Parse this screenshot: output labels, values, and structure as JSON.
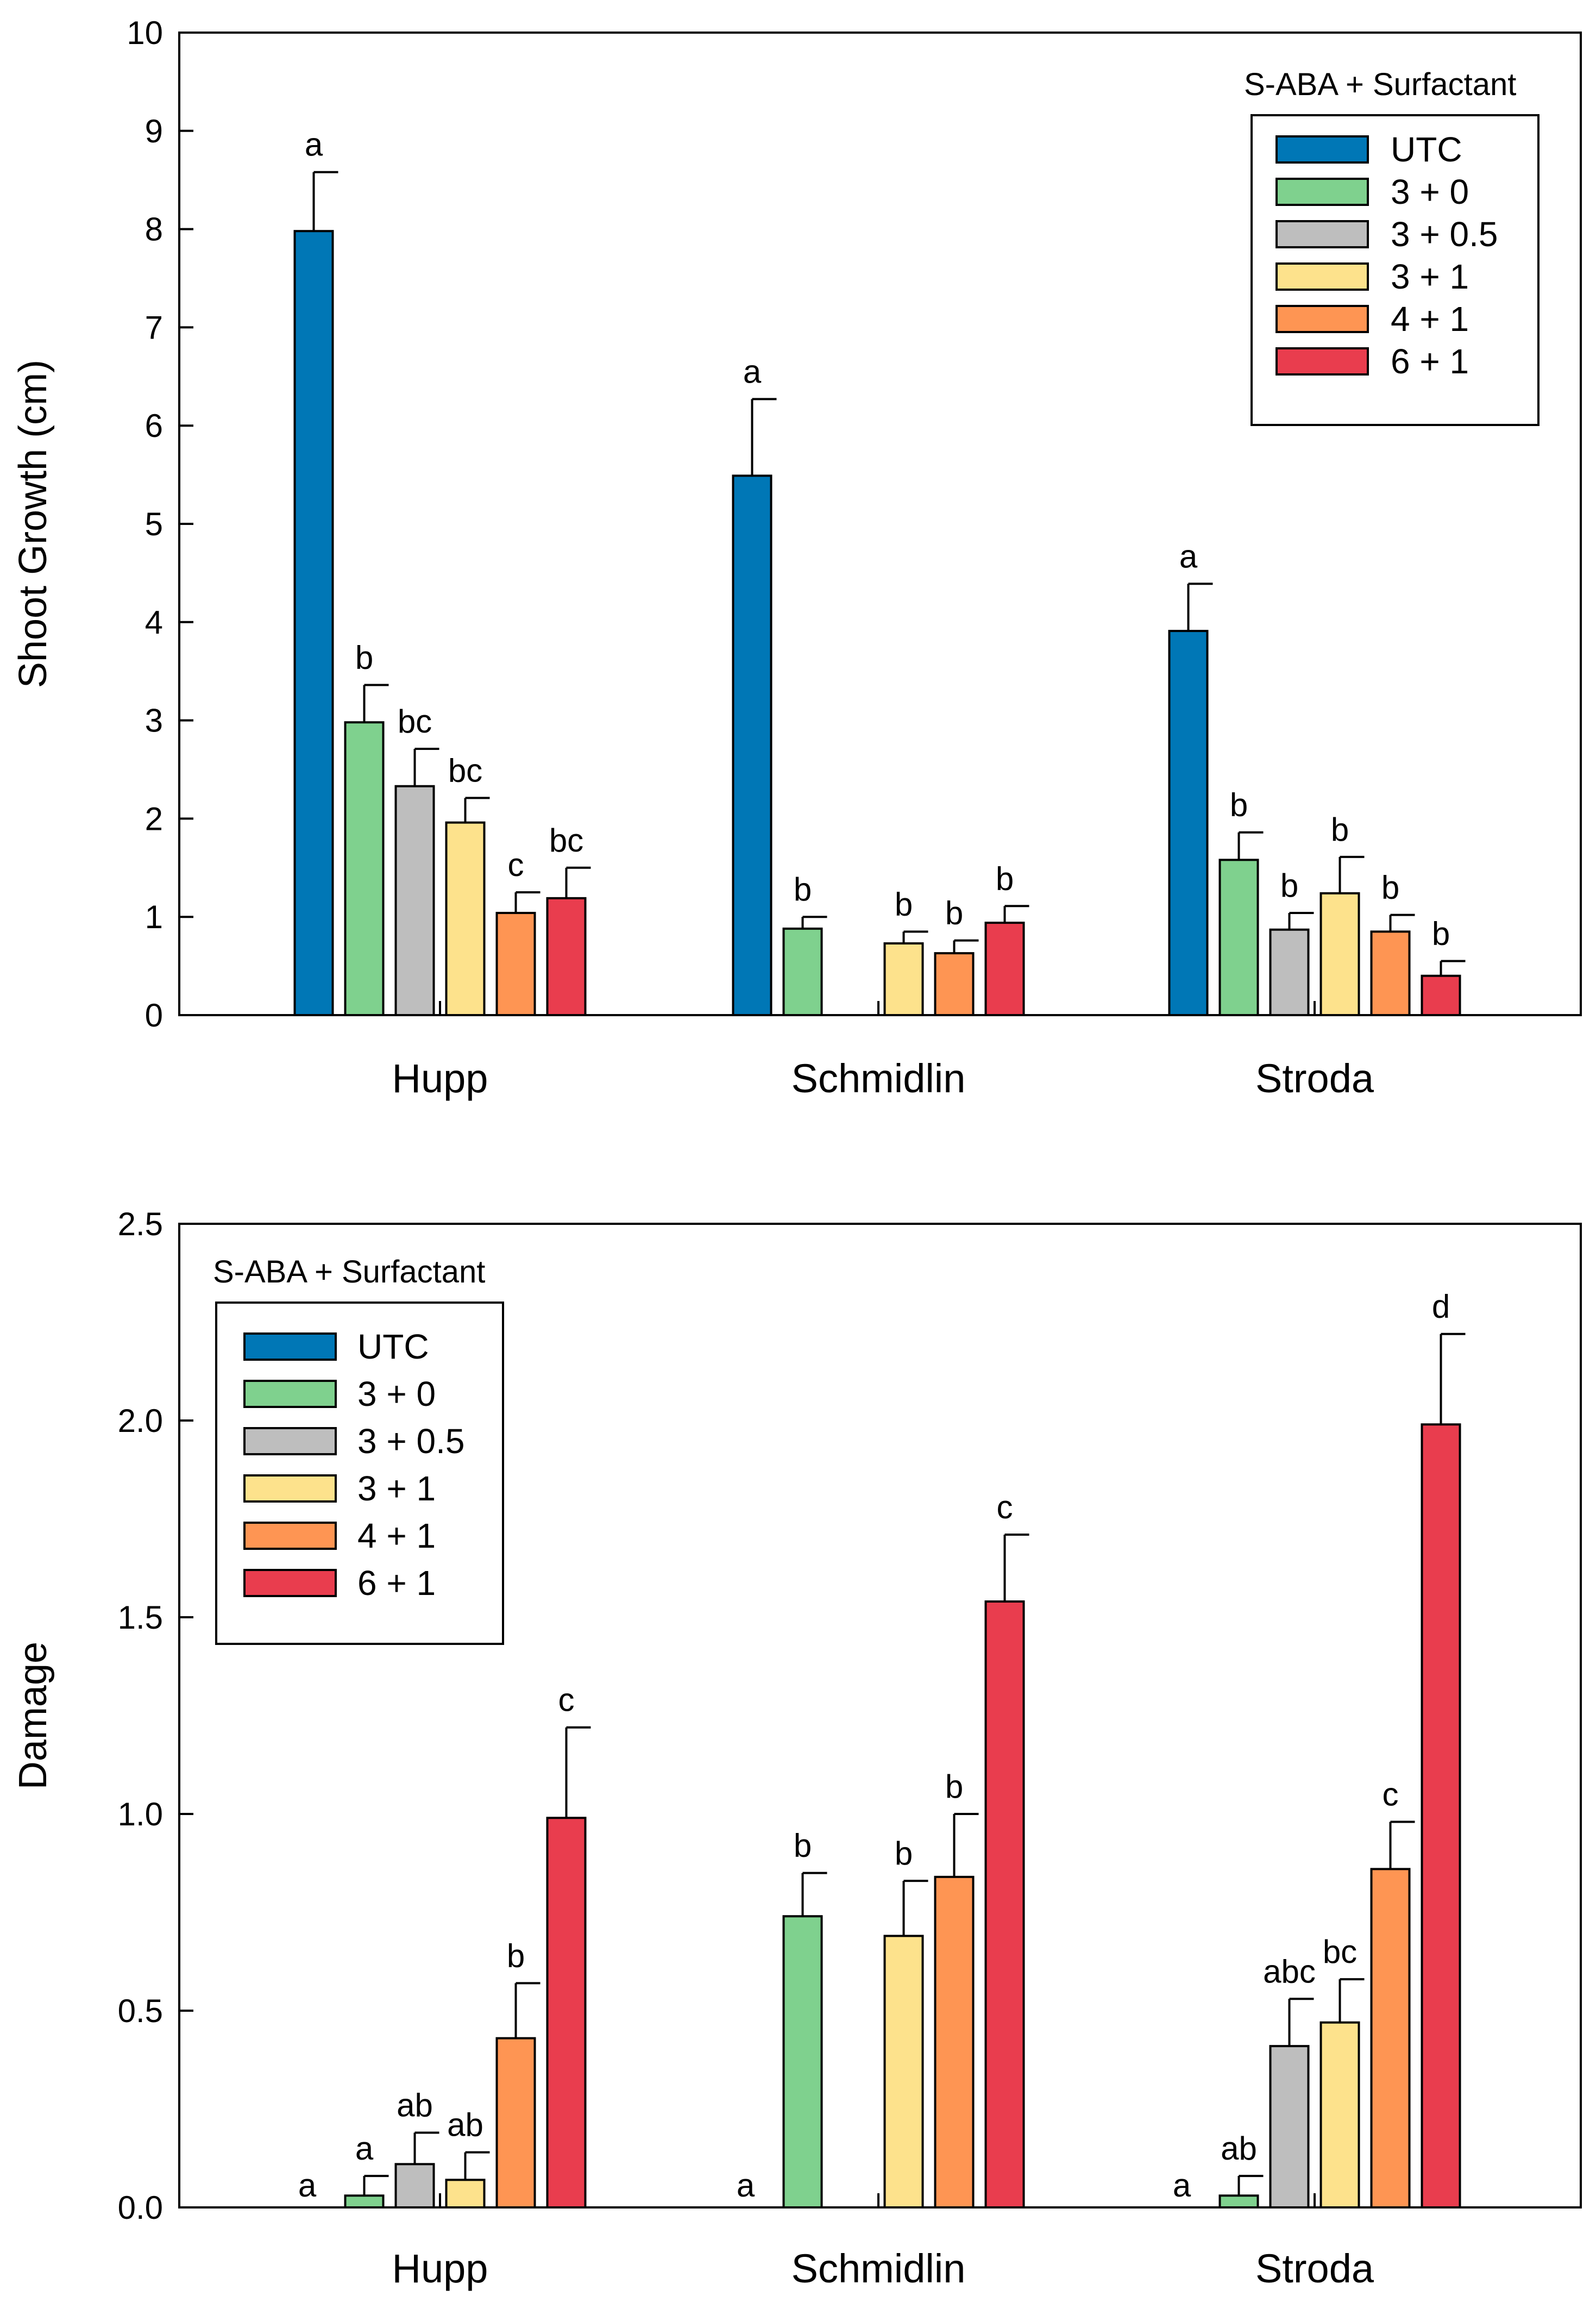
{
  "chart_data": [
    {
      "type": "bar",
      "ylabel": "Shoot Growth (cm)",
      "xlabel": "",
      "ylim": [
        0,
        10
      ],
      "yticks": [
        "0",
        "1",
        "2",
        "3",
        "4",
        "5",
        "6",
        "7",
        "8",
        "9",
        "10"
      ],
      "categories": [
        "Hupp",
        "Schmidlin",
        "Stroda"
      ],
      "legend_title": "S-ABA + Surfactant",
      "legend_position": "top-right",
      "series": [
        {
          "name": "UTC",
          "color": "#0077B6",
          "values": [
            7.98,
            5.49,
            3.91
          ],
          "errors": [
            0.6,
            0.78,
            0.48
          ],
          "letters": [
            "a",
            "a",
            "a"
          ]
        },
        {
          "name": "3 + 0",
          "color": "#7FD18E",
          "values": [
            2.98,
            0.88,
            1.58
          ],
          "errors": [
            0.38,
            0.12,
            0.28
          ],
          "letters": [
            "b",
            "b",
            "b"
          ]
        },
        {
          "name": "3 + 0.5",
          "color": "#BEBEBE",
          "values": [
            2.33,
            null,
            0.87
          ],
          "errors": [
            0.38,
            null,
            0.17
          ],
          "letters": [
            "bc",
            "",
            "b"
          ]
        },
        {
          "name": "3 + 1",
          "color": "#FDE28C",
          "values": [
            1.96,
            0.73,
            1.24
          ],
          "errors": [
            0.25,
            0.12,
            0.37
          ],
          "letters": [
            "bc",
            "b",
            "b"
          ]
        },
        {
          "name": "4 + 1",
          "color": "#FE9553",
          "values": [
            1.04,
            0.63,
            0.85
          ],
          "errors": [
            0.21,
            0.13,
            0.17
          ],
          "letters": [
            "c",
            "b",
            "b"
          ]
        },
        {
          "name": "6 + 1",
          "color": "#E93D4E",
          "values": [
            1.19,
            0.94,
            0.4
          ],
          "errors": [
            0.31,
            0.17,
            0.15
          ],
          "letters": [
            "bc",
            "b",
            "b"
          ]
        }
      ]
    },
    {
      "type": "bar",
      "ylabel": "Damage",
      "xlabel": "",
      "ylim": [
        0,
        2.5
      ],
      "yticks": [
        "0.0",
        "0.5",
        "1.0",
        "1.5",
        "2.0",
        "2.5"
      ],
      "categories": [
        "Hupp",
        "Schmidlin",
        "Stroda"
      ],
      "legend_title": "S-ABA + Surfactant",
      "legend_position": "top-left",
      "series": [
        {
          "name": "UTC",
          "color": "#0077B6",
          "values": [
            0,
            0,
            0
          ],
          "errors": [
            null,
            null,
            null
          ],
          "letters": [
            "a",
            "a",
            "a"
          ]
        },
        {
          "name": "3 + 0",
          "color": "#7FD18E",
          "values": [
            0.03,
            0.74,
            0.03
          ],
          "errors": [
            0.05,
            0.11,
            0.05
          ],
          "letters": [
            "a",
            "b",
            "ab"
          ]
        },
        {
          "name": "3 + 0.5",
          "color": "#BEBEBE",
          "values": [
            0.11,
            null,
            0.41
          ],
          "errors": [
            0.08,
            null,
            0.12
          ],
          "letters": [
            "ab",
            "",
            "abc"
          ]
        },
        {
          "name": "3 + 1",
          "color": "#FDE28C",
          "values": [
            0.07,
            0.69,
            0.47
          ],
          "errors": [
            0.07,
            0.14,
            0.11
          ],
          "letters": [
            "ab",
            "b",
            "bc"
          ]
        },
        {
          "name": "4 + 1",
          "color": "#FE9553",
          "values": [
            0.43,
            0.84,
            0.86
          ],
          "errors": [
            0.14,
            0.16,
            0.12
          ],
          "letters": [
            "b",
            "b",
            "c"
          ]
        },
        {
          "name": "6 + 1",
          "color": "#E93D4E",
          "values": [
            0.99,
            1.54,
            1.99
          ],
          "errors": [
            0.23,
            0.17,
            0.23
          ],
          "letters": [
            "c",
            "c",
            "d"
          ]
        }
      ]
    }
  ]
}
